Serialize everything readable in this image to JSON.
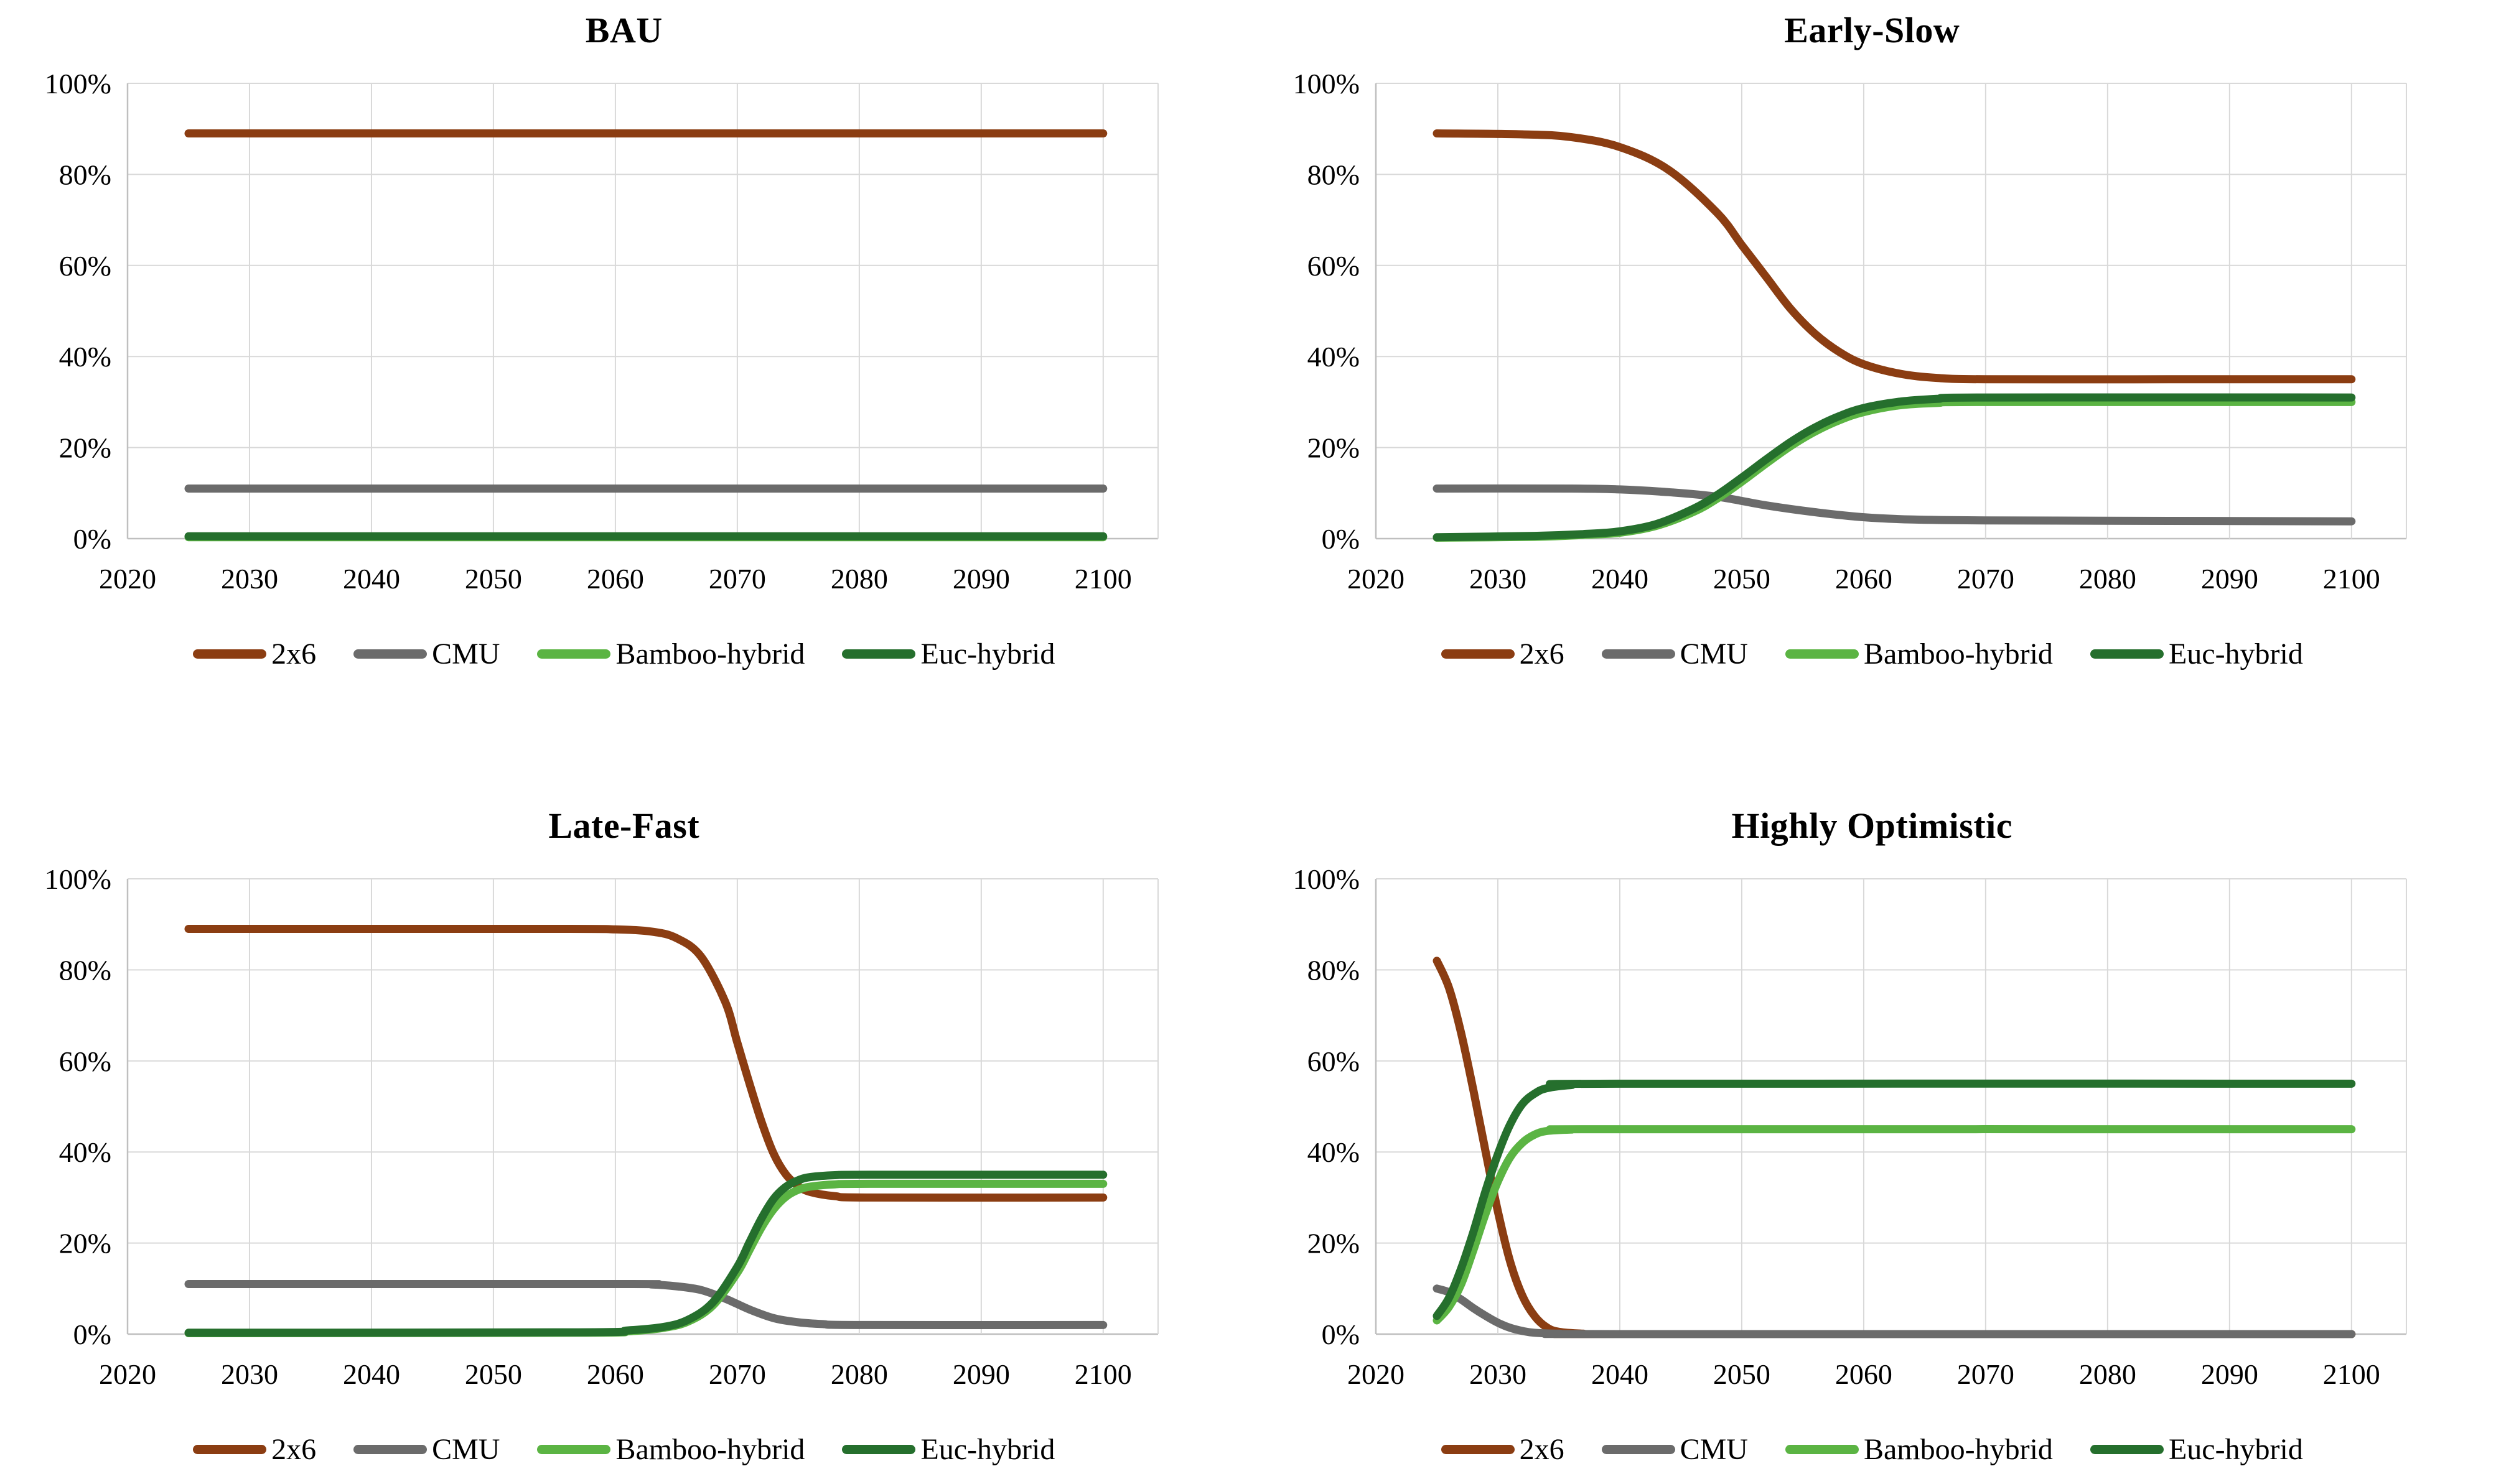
{
  "colors": {
    "2x6": "#8B3D12",
    "CMU": "#6B6B6B",
    "Bamboo-hybrid": "#5BB443",
    "Euc-hybrid": "#256F2D",
    "grid": "#D9D9D9",
    "axis": "#BFBFBF",
    "text": "#000000"
  },
  "legend": {
    "items": [
      {
        "label": "2x6",
        "color_key": "2x6"
      },
      {
        "label": "CMU",
        "color_key": "CMU"
      },
      {
        "label": "Bamboo-hybrid",
        "color_key": "Bamboo-hybrid"
      },
      {
        "label": "Euc-hybrid",
        "color_key": "Euc-hybrid"
      }
    ]
  },
  "axes": {
    "x_min": 2020,
    "x_max": 2104.5,
    "y_min": 0,
    "y_max": 100,
    "x_tick_labels": [
      "2020",
      "2030",
      "2040",
      "2050",
      "2060",
      "2070",
      "2080",
      "2090",
      "2100"
    ],
    "x_tick_values": [
      2020,
      2030,
      2040,
      2050,
      2060,
      2070,
      2080,
      2090,
      2100
    ],
    "y_tick_labels": [
      "0%",
      "20%",
      "40%",
      "60%",
      "80%",
      "100%"
    ],
    "y_tick_values": [
      0,
      20,
      40,
      60,
      80,
      100
    ],
    "grid": true
  },
  "chart_data": [
    {
      "type": "line",
      "title": "BAU",
      "xlabel": "",
      "ylabel": "",
      "ylim": [
        0,
        100
      ],
      "xlim": [
        2020,
        2104.5
      ],
      "legend_position": "bottom",
      "series": [
        {
          "name": "2x6",
          "points": [
            [
              2025,
              89
            ],
            [
              2100,
              89
            ]
          ]
        },
        {
          "name": "CMU",
          "points": [
            [
              2025,
              11
            ],
            [
              2100,
              11
            ]
          ]
        },
        {
          "name": "Bamboo-hybrid",
          "points": [
            [
              2025,
              0.3
            ],
            [
              2100,
              0.3
            ]
          ]
        },
        {
          "name": "Euc-hybrid",
          "points": [
            [
              2025,
              0.5
            ],
            [
              2100,
              0.5
            ]
          ]
        }
      ]
    },
    {
      "type": "line",
      "title": "Early-Slow",
      "xlabel": "",
      "ylabel": "",
      "ylim": [
        0,
        100
      ],
      "xlim": [
        2020,
        2104.5
      ],
      "legend_position": "bottom",
      "series": [
        {
          "name": "2x6",
          "points": [
            [
              2025,
              89
            ],
            [
              2032,
              88.8
            ],
            [
              2036,
              88.2
            ],
            [
              2040,
              86
            ],
            [
              2044,
              81
            ],
            [
              2048,
              71.5
            ],
            [
              2050,
              64.5
            ],
            [
              2052,
              57.5
            ],
            [
              2054,
              50.5
            ],
            [
              2056,
              45
            ],
            [
              2058,
              41
            ],
            [
              2060,
              38.3
            ],
            [
              2063,
              36.2
            ],
            [
              2066,
              35.3
            ],
            [
              2070,
              35
            ],
            [
              2085,
              35
            ],
            [
              2100,
              35
            ]
          ]
        },
        {
          "name": "CMU",
          "points": [
            [
              2025,
              11
            ],
            [
              2036,
              11
            ],
            [
              2040,
              10.8
            ],
            [
              2044,
              10.2
            ],
            [
              2048,
              9.2
            ],
            [
              2052,
              7.3
            ],
            [
              2056,
              5.8
            ],
            [
              2060,
              4.7
            ],
            [
              2064,
              4.2
            ],
            [
              2070,
              4
            ],
            [
              2085,
              3.9
            ],
            [
              2100,
              3.8
            ]
          ]
        },
        {
          "name": "Bamboo-hybrid",
          "points": [
            [
              2025,
              0.2
            ],
            [
              2033,
              0.4
            ],
            [
              2037,
              0.8
            ],
            [
              2040,
              1.3
            ],
            [
              2043,
              2.8
            ],
            [
              2046,
              5.8
            ],
            [
              2048,
              8.8
            ],
            [
              2050,
              12.5
            ],
            [
              2052,
              16.5
            ],
            [
              2054,
              20.3
            ],
            [
              2056,
              23.5
            ],
            [
              2058,
              26
            ],
            [
              2060,
              27.8
            ],
            [
              2063,
              29.3
            ],
            [
              2066,
              29.8
            ],
            [
              2070,
              30
            ],
            [
              2100,
              30
            ]
          ]
        },
        {
          "name": "Euc-hybrid",
          "points": [
            [
              2025,
              0.3
            ],
            [
              2033,
              0.6
            ],
            [
              2037,
              1
            ],
            [
              2040,
              1.6
            ],
            [
              2043,
              3.2
            ],
            [
              2046,
              6.5
            ],
            [
              2048,
              9.6
            ],
            [
              2050,
              13.4
            ],
            [
              2052,
              17.4
            ],
            [
              2054,
              21.2
            ],
            [
              2056,
              24.4
            ],
            [
              2058,
              26.9
            ],
            [
              2060,
              28.7
            ],
            [
              2063,
              30.1
            ],
            [
              2066,
              30.7
            ],
            [
              2070,
              31
            ],
            [
              2100,
              31
            ]
          ]
        }
      ]
    },
    {
      "type": "line",
      "title": "Late-Fast",
      "xlabel": "",
      "ylabel": "",
      "ylim": [
        0,
        100
      ],
      "xlim": [
        2020,
        2104.5
      ],
      "legend_position": "bottom",
      "series": [
        {
          "name": "2x6",
          "points": [
            [
              2025,
              89
            ],
            [
              2055,
              89
            ],
            [
              2060,
              88.9
            ],
            [
              2063,
              88.4
            ],
            [
              2065,
              87
            ],
            [
              2067,
              83
            ],
            [
              2069,
              73
            ],
            [
              2070,
              64
            ],
            [
              2071,
              55
            ],
            [
              2072,
              46.5
            ],
            [
              2073,
              39.5
            ],
            [
              2074,
              35
            ],
            [
              2075,
              32.5
            ],
            [
              2076,
              31.2
            ],
            [
              2078,
              30.3
            ],
            [
              2081,
              30
            ],
            [
              2100,
              30
            ]
          ]
        },
        {
          "name": "CMU",
          "points": [
            [
              2025,
              11
            ],
            [
              2060,
              11
            ],
            [
              2063,
              10.9
            ],
            [
              2065,
              10.5
            ],
            [
              2067,
              9.7
            ],
            [
              2069,
              7.8
            ],
            [
              2071,
              5.4
            ],
            [
              2073,
              3.5
            ],
            [
              2075,
              2.6
            ],
            [
              2077,
              2.2
            ],
            [
              2080,
              2
            ],
            [
              2100,
              2
            ]
          ]
        },
        {
          "name": "Bamboo-hybrid",
          "points": [
            [
              2025,
              0.2
            ],
            [
              2057,
              0.3
            ],
            [
              2061,
              0.6
            ],
            [
              2064,
              1.4
            ],
            [
              2066,
              2.8
            ],
            [
              2068,
              6.3
            ],
            [
              2070,
              13.5
            ],
            [
              2071,
              18.5
            ],
            [
              2072,
              23.5
            ],
            [
              2073,
              27.5
            ],
            [
              2074,
              30.2
            ],
            [
              2075,
              31.7
            ],
            [
              2076,
              32.4
            ],
            [
              2078,
              32.9
            ],
            [
              2081,
              33
            ],
            [
              2100,
              33
            ]
          ]
        },
        {
          "name": "Euc-hybrid",
          "points": [
            [
              2025,
              0.3
            ],
            [
              2057,
              0.4
            ],
            [
              2061,
              0.8
            ],
            [
              2064,
              1.6
            ],
            [
              2066,
              3.2
            ],
            [
              2068,
              7
            ],
            [
              2070,
              14.8
            ],
            [
              2071,
              20.2
            ],
            [
              2072,
              25.5
            ],
            [
              2073,
              29.8
            ],
            [
              2074,
              32.4
            ],
            [
              2075,
              33.8
            ],
            [
              2076,
              34.5
            ],
            [
              2078,
              34.9
            ],
            [
              2081,
              35
            ],
            [
              2100,
              35
            ]
          ]
        }
      ]
    },
    {
      "type": "line",
      "title": "Highly Optimistic",
      "xlabel": "",
      "ylabel": "",
      "ylim": [
        0,
        100
      ],
      "xlim": [
        2020,
        2104.5
      ],
      "legend_position": "bottom",
      "series": [
        {
          "name": "2x6",
          "points": [
            [
              2025,
              82
            ],
            [
              2026,
              76
            ],
            [
              2027,
              66
            ],
            [
              2028,
              53.5
            ],
            [
              2029,
              40
            ],
            [
              2030,
              27
            ],
            [
              2031,
              16
            ],
            [
              2032,
              8.5
            ],
            [
              2033,
              4
            ],
            [
              2034,
              1.5
            ],
            [
              2035,
              0.5
            ],
            [
              2037,
              0.1
            ],
            [
              2040,
              0
            ],
            [
              2100,
              0
            ]
          ]
        },
        {
          "name": "CMU",
          "points": [
            [
              2025,
              10
            ],
            [
              2026,
              9.2
            ],
            [
              2027,
              7.6
            ],
            [
              2028,
              5.7
            ],
            [
              2029,
              4
            ],
            [
              2030,
              2.5
            ],
            [
              2031,
              1.4
            ],
            [
              2032,
              0.7
            ],
            [
              2033,
              0.3
            ],
            [
              2035,
              0.1
            ],
            [
              2040,
              0
            ],
            [
              2100,
              0
            ]
          ]
        },
        {
          "name": "Bamboo-hybrid",
          "points": [
            [
              2025,
              3
            ],
            [
              2026,
              6
            ],
            [
              2027,
              11
            ],
            [
              2028,
              18.5
            ],
            [
              2029,
              26.5
            ],
            [
              2030,
              33.5
            ],
            [
              2031,
              38.8
            ],
            [
              2032,
              42
            ],
            [
              2033,
              43.8
            ],
            [
              2034,
              44.6
            ],
            [
              2036,
              44.9
            ],
            [
              2040,
              45
            ],
            [
              2100,
              45
            ]
          ]
        },
        {
          "name": "Euc-hybrid",
          "points": [
            [
              2025,
              4
            ],
            [
              2026,
              8
            ],
            [
              2027,
              14.5
            ],
            [
              2028,
              22.5
            ],
            [
              2029,
              31.5
            ],
            [
              2030,
              39.5
            ],
            [
              2031,
              46
            ],
            [
              2032,
              50.5
            ],
            [
              2033,
              52.8
            ],
            [
              2034,
              54
            ],
            [
              2036,
              54.7
            ],
            [
              2040,
              55
            ],
            [
              2100,
              55
            ]
          ]
        }
      ]
    }
  ]
}
